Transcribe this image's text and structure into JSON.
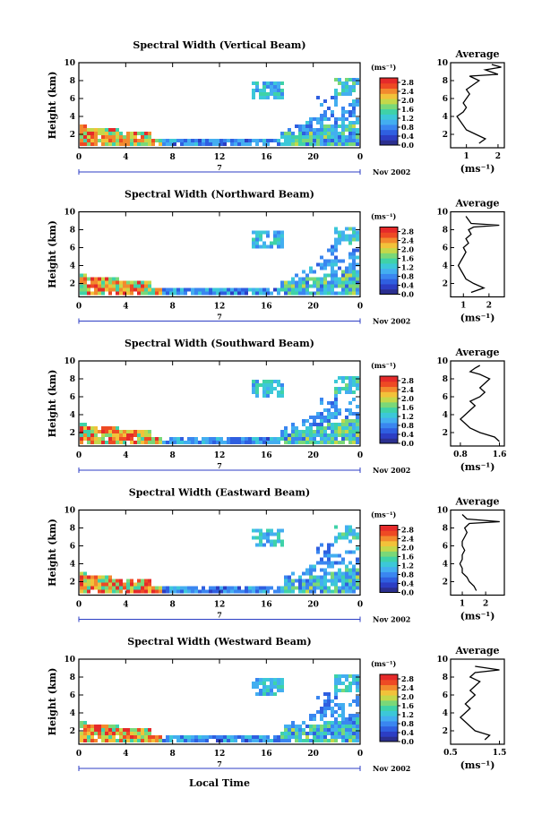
{
  "figure": {
    "xlabel": "Local Time",
    "date_label": "Nov 2002",
    "day_marker": "7",
    "colors": {
      "scale": [
        "#2b2f8f",
        "#2c3ec4",
        "#2f5fe0",
        "#3a86f0",
        "#43aef0",
        "#3cc8d8",
        "#3fd2a8",
        "#7ad878",
        "#c4d84a",
        "#f2c23a",
        "#f28a2e",
        "#ee4a24",
        "#e52a2a"
      ],
      "line": "#000000"
    }
  },
  "chart_data": [
    {
      "type": "heatmap",
      "title": "Spectral Width (Vertical Beam)",
      "ylabel": "Height (km)",
      "x_ticks": [
        "0",
        "4",
        "8",
        "12",
        "16",
        "20",
        "0"
      ],
      "y_ticks": [
        "2",
        "4",
        "6",
        "8",
        "10"
      ],
      "xlim": [
        0,
        24
      ],
      "ylim": [
        0.5,
        10
      ],
      "colorbar": {
        "unit": "(ms⁻¹)",
        "ticks": [
          "0.0",
          "0.4",
          "0.8",
          "1.2",
          "1.6",
          "2.0",
          "2.4",
          "2.8"
        ],
        "range": [
          0,
          3
        ]
      },
      "average": {
        "title": "Average",
        "xlabel": "(ms⁻¹)",
        "x_ticks": [
          "1",
          "2"
        ],
        "xlim": [
          0.5,
          2.2
        ],
        "profile": [
          [
            1.4,
            1.0
          ],
          [
            1.6,
            1.5
          ],
          [
            1.3,
            2.0
          ],
          [
            1.0,
            2.5
          ],
          [
            0.9,
            3.0
          ],
          [
            0.8,
            3.5
          ],
          [
            0.7,
            4.0
          ],
          [
            0.9,
            4.5
          ],
          [
            1.0,
            5.0
          ],
          [
            0.9,
            5.5
          ],
          [
            1.0,
            6.0
          ],
          [
            1.1,
            6.5
          ],
          [
            1.0,
            7.0
          ],
          [
            1.2,
            7.5
          ],
          [
            1.4,
            8.0
          ],
          [
            1.1,
            8.5
          ],
          [
            2.0,
            8.7
          ],
          [
            1.6,
            9.2
          ],
          [
            2.1,
            9.5
          ],
          [
            1.8,
            9.8
          ]
        ]
      }
    },
    {
      "type": "heatmap",
      "title": "Spectral Width (Northward Beam)",
      "ylabel": "Height (km)",
      "x_ticks": [
        "0",
        "4",
        "8",
        "12",
        "16",
        "20",
        "0"
      ],
      "y_ticks": [
        "2",
        "4",
        "6",
        "8",
        "10"
      ],
      "xlim": [
        0,
        24
      ],
      "ylim": [
        0.5,
        10
      ],
      "colorbar": {
        "unit": "(ms⁻¹)",
        "ticks": [
          "0.0",
          "0.4",
          "0.8",
          "1.2",
          "1.6",
          "2.0",
          "2.4",
          "2.8"
        ],
        "range": [
          0,
          3
        ]
      },
      "average": {
        "title": "Average",
        "xlabel": "(ms⁻¹)",
        "x_ticks": [
          "1",
          "2"
        ],
        "xlim": [
          0.5,
          2.6
        ],
        "profile": [
          [
            1.3,
            1.0
          ],
          [
            1.8,
            1.5
          ],
          [
            1.4,
            2.0
          ],
          [
            1.1,
            2.5
          ],
          [
            1.0,
            3.0
          ],
          [
            0.9,
            3.5
          ],
          [
            0.8,
            4.0
          ],
          [
            0.9,
            4.5
          ],
          [
            1.0,
            5.0
          ],
          [
            1.1,
            5.5
          ],
          [
            1.0,
            6.0
          ],
          [
            1.2,
            6.5
          ],
          [
            1.1,
            7.0
          ],
          [
            1.3,
            7.5
          ],
          [
            1.2,
            8.0
          ],
          [
            1.4,
            8.3
          ],
          [
            2.4,
            8.5
          ],
          [
            1.3,
            8.7
          ],
          [
            1.1,
            9.5
          ]
        ]
      }
    },
    {
      "type": "heatmap",
      "title": "Spectral Width (Southward Beam)",
      "ylabel": "Height (km)",
      "x_ticks": [
        "0",
        "4",
        "8",
        "12",
        "16",
        "20",
        "0"
      ],
      "y_ticks": [
        "2",
        "4",
        "6",
        "8",
        "10"
      ],
      "xlim": [
        0,
        24
      ],
      "ylim": [
        0.5,
        10
      ],
      "colorbar": {
        "unit": "(ms⁻¹)",
        "ticks": [
          "0.0",
          "0.4",
          "0.8",
          "1.2",
          "1.6",
          "2.0",
          "2.4",
          "2.8"
        ],
        "range": [
          0,
          3
        ]
      },
      "average": {
        "title": "Average",
        "xlabel": "(ms⁻¹)",
        "x_ticks": [
          "0.8",
          "1.6"
        ],
        "xlim": [
          0.6,
          1.7
        ],
        "profile": [
          [
            1.6,
            1.0
          ],
          [
            1.5,
            1.5
          ],
          [
            1.2,
            2.0
          ],
          [
            1.0,
            2.5
          ],
          [
            0.9,
            3.0
          ],
          [
            0.8,
            3.5
          ],
          [
            0.9,
            4.0
          ],
          [
            1.0,
            4.5
          ],
          [
            1.1,
            5.0
          ],
          [
            1.0,
            5.5
          ],
          [
            1.2,
            6.0
          ],
          [
            1.3,
            6.5
          ],
          [
            1.2,
            7.0
          ],
          [
            1.3,
            7.5
          ],
          [
            1.4,
            8.0
          ],
          [
            1.2,
            8.5
          ],
          [
            1.0,
            8.8
          ],
          [
            1.1,
            9.2
          ],
          [
            1.2,
            9.5
          ]
        ]
      }
    },
    {
      "type": "heatmap",
      "title": "Spectral Width (Eastward Beam)",
      "ylabel": "Height (km)",
      "x_ticks": [
        "0",
        "4",
        "8",
        "12",
        "16",
        "20",
        "0"
      ],
      "y_ticks": [
        "2",
        "4",
        "6",
        "8",
        "10"
      ],
      "xlim": [
        0,
        24
      ],
      "ylim": [
        0.5,
        10
      ],
      "colorbar": {
        "unit": "(ms⁻¹)",
        "ticks": [
          "0.0",
          "0.4",
          "0.8",
          "1.2",
          "1.6",
          "2.0",
          "2.4",
          "2.8"
        ],
        "range": [
          0,
          3
        ]
      },
      "average": {
        "title": "Average",
        "xlabel": "(ms⁻¹)",
        "x_ticks": [
          "1",
          "2"
        ],
        "xlim": [
          0.5,
          2.8
        ],
        "profile": [
          [
            1.6,
            1.0
          ],
          [
            1.5,
            1.5
          ],
          [
            1.3,
            2.0
          ],
          [
            1.2,
            2.5
          ],
          [
            1.0,
            3.0
          ],
          [
            1.0,
            3.5
          ],
          [
            0.9,
            4.0
          ],
          [
            1.0,
            4.5
          ],
          [
            1.0,
            5.0
          ],
          [
            1.1,
            5.5
          ],
          [
            1.0,
            6.0
          ],
          [
            1.0,
            6.5
          ],
          [
            1.1,
            7.0
          ],
          [
            1.2,
            7.5
          ],
          [
            1.1,
            8.0
          ],
          [
            1.3,
            8.5
          ],
          [
            2.6,
            8.7
          ],
          [
            1.2,
            9.0
          ],
          [
            1.0,
            9.5
          ]
        ]
      }
    },
    {
      "type": "heatmap",
      "title": "Spectral Width (Westward Beam)",
      "ylabel": "Height (km)",
      "x_ticks": [
        "0",
        "4",
        "8",
        "12",
        "16",
        "20",
        "0"
      ],
      "y_ticks": [
        "2",
        "4",
        "6",
        "8",
        "10"
      ],
      "xlim": [
        0,
        24
      ],
      "ylim": [
        0.5,
        10
      ],
      "colorbar": {
        "unit": "(ms⁻¹)",
        "ticks": [
          "0.0",
          "0.4",
          "0.8",
          "1.2",
          "1.6",
          "2.0",
          "2.4",
          "2.8"
        ],
        "range": [
          0,
          3
        ]
      },
      "average": {
        "title": "Average",
        "xlabel": "(ms⁻¹)",
        "x_ticks": [
          "0.5",
          "1.5"
        ],
        "xlim": [
          0.5,
          1.6
        ],
        "profile": [
          [
            1.2,
            1.0
          ],
          [
            1.3,
            1.5
          ],
          [
            1.0,
            2.0
          ],
          [
            0.9,
            2.5
          ],
          [
            0.8,
            3.0
          ],
          [
            0.7,
            3.5
          ],
          [
            0.8,
            4.0
          ],
          [
            0.9,
            4.5
          ],
          [
            0.8,
            5.0
          ],
          [
            0.9,
            5.5
          ],
          [
            1.0,
            6.0
          ],
          [
            0.9,
            6.5
          ],
          [
            1.0,
            7.0
          ],
          [
            1.1,
            7.5
          ],
          [
            0.9,
            8.0
          ],
          [
            1.0,
            8.5
          ],
          [
            1.5,
            8.8
          ],
          [
            1.0,
            9.2
          ]
        ]
      }
    }
  ]
}
